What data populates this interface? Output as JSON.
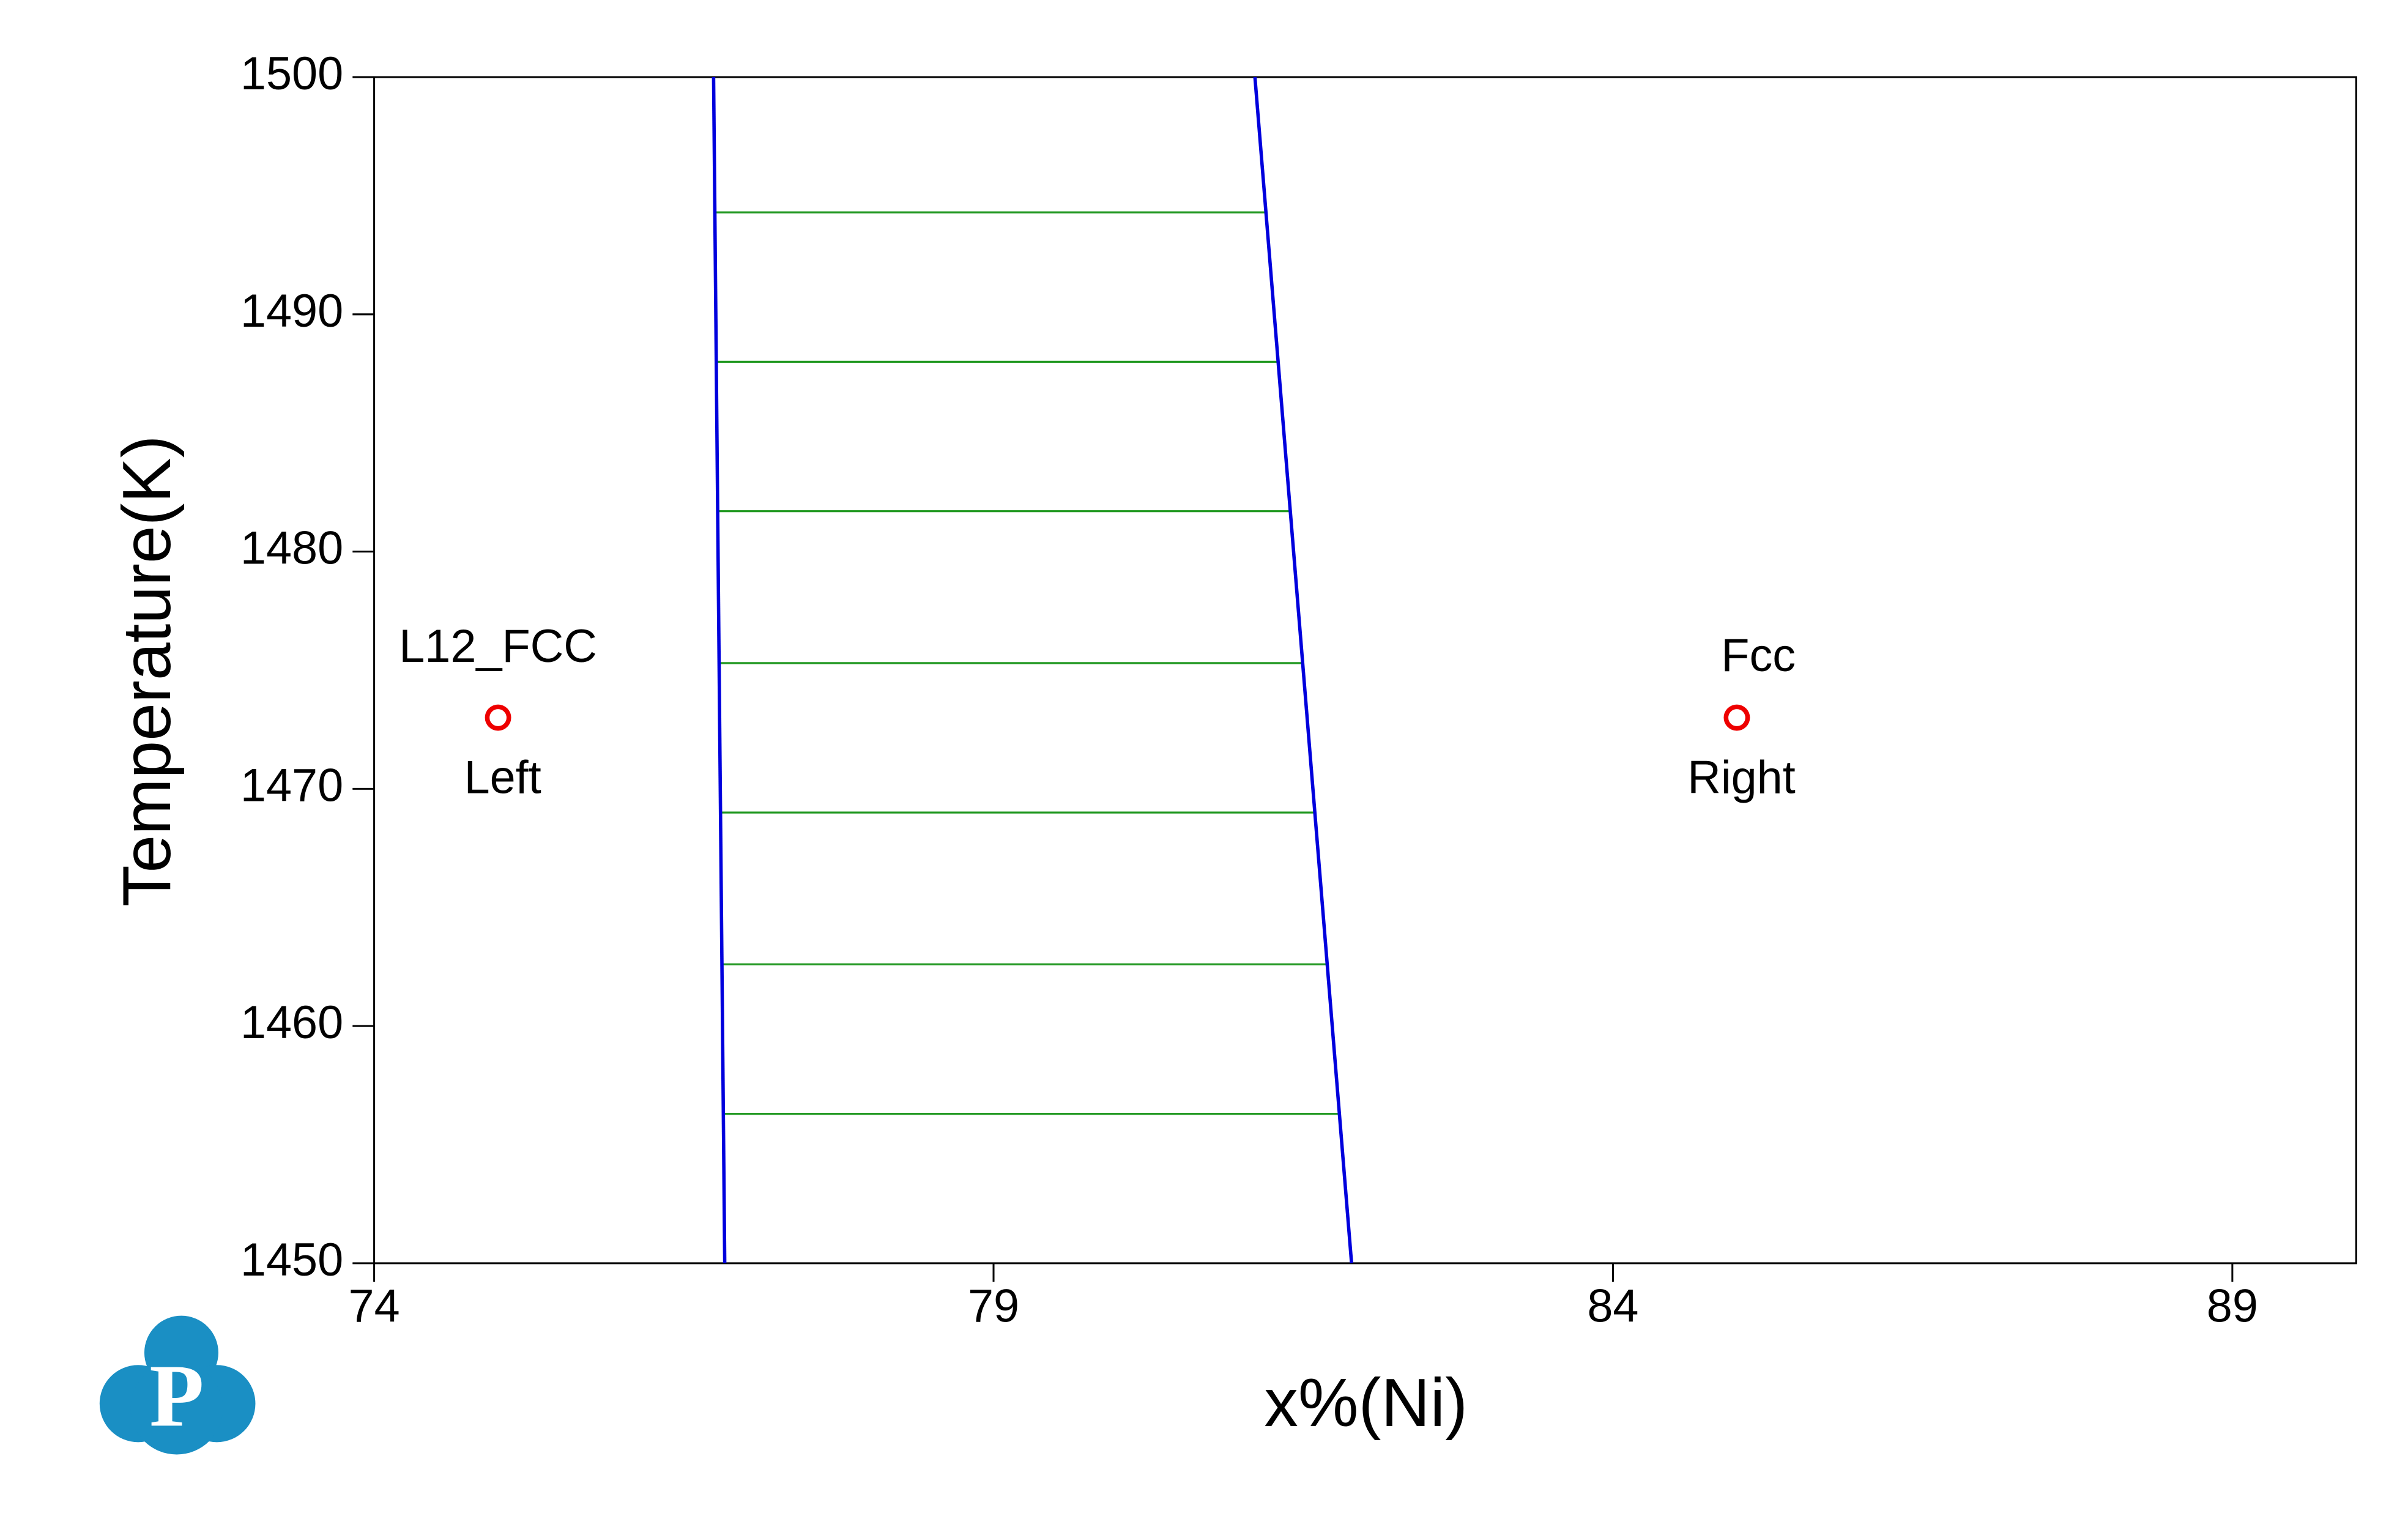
{
  "chart_data": {
    "type": "phase-diagram",
    "x_label": "x%(Ni)",
    "y_label": "Temperature(K)",
    "xlim": [
      74,
      90
    ],
    "ylim": [
      1450,
      1500
    ],
    "xticks": [
      74,
      79,
      84,
      89
    ],
    "yticks": [
      1450,
      1460,
      1470,
      1480,
      1490,
      1500
    ],
    "boundary_color": "#0000dd",
    "tie_line_color": "#229922",
    "point_color": "#ee0000",
    "boundaries": [
      {
        "x": [
          76.74,
          76.83
        ],
        "y": [
          1500,
          1450
        ]
      },
      {
        "x": [
          81.11,
          81.89
        ],
        "y": [
          1500,
          1450
        ]
      }
    ],
    "tie_lines": [
      {
        "x": [
          76.75,
          81.2
        ],
        "y": [
          1494.3,
          1494.3
        ]
      },
      {
        "x": [
          76.76,
          81.3
        ],
        "y": [
          1488.0,
          1488.0
        ]
      },
      {
        "x": [
          76.77,
          81.4
        ],
        "y": [
          1481.7,
          1481.7
        ]
      },
      {
        "x": [
          76.78,
          81.5
        ],
        "y": [
          1475.3,
          1475.3
        ]
      },
      {
        "x": [
          76.8,
          81.59
        ],
        "y": [
          1469.0,
          1469.0
        ]
      },
      {
        "x": [
          76.81,
          81.69
        ],
        "y": [
          1462.6,
          1462.6
        ]
      },
      {
        "x": [
          76.82,
          81.79
        ],
        "y": [
          1456.3,
          1456.3
        ]
      }
    ],
    "points": [
      {
        "x": 75.0,
        "y": 1473,
        "phase": "L12_FCC",
        "label": "Left"
      },
      {
        "x": 85.0,
        "y": 1473,
        "phase": "Fcc",
        "label": "Right"
      }
    ]
  },
  "logo": "P"
}
